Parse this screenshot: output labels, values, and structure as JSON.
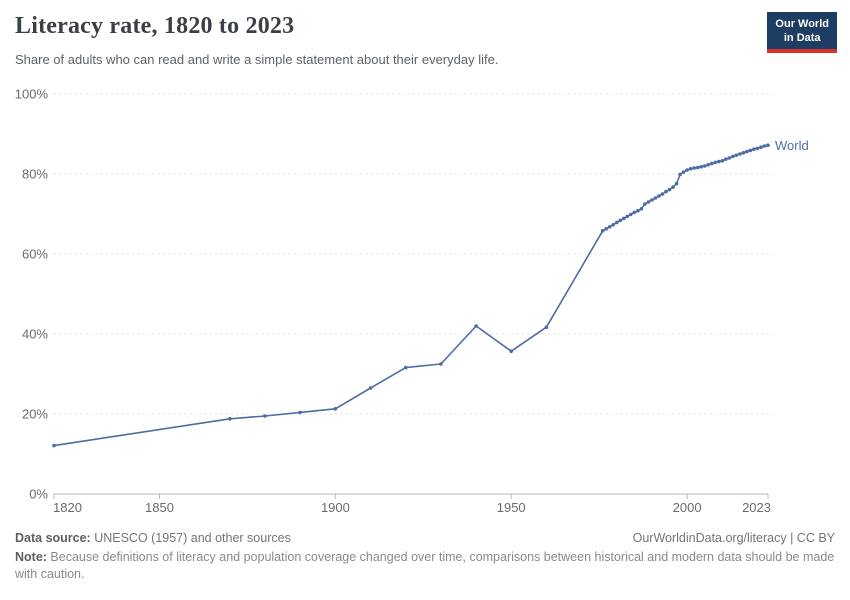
{
  "header": {
    "title": "Literacy rate, 1820 to 2023",
    "subtitle": "Share of adults who can read and write a simple statement about their everyday life.",
    "logo": {
      "line1": "Our World",
      "line2": "in Data",
      "bg": "#1d3d63",
      "accent": "#d8352e"
    }
  },
  "theme": {
    "line_color": "#4c6da4",
    "grid_color": "#dedede",
    "axis_color": "#b8b8b8",
    "tick_label_color": "#6b6b6b"
  },
  "chart_data": {
    "type": "line",
    "title": "Literacy rate, 1820 to 2023",
    "xlabel": "",
    "ylabel": "",
    "xlim": [
      1820,
      2023
    ],
    "ylim": [
      0,
      100
    ],
    "grid": "horizontal-dashed",
    "series_label_position": "end-of-line",
    "x_ticks": [
      1820,
      1850,
      1900,
      1950,
      2000,
      2023
    ],
    "y_ticks": [
      {
        "value": 0,
        "label": "0%"
      },
      {
        "value": 20,
        "label": "20%"
      },
      {
        "value": 40,
        "label": "40%"
      },
      {
        "value": 60,
        "label": "60%"
      },
      {
        "value": 80,
        "label": "80%"
      },
      {
        "value": 100,
        "label": "100%"
      }
    ],
    "series": [
      {
        "name": "World",
        "color": "#4c6da4",
        "points": [
          [
            1820,
            12.1
          ],
          [
            1870,
            18.8
          ],
          [
            1880,
            19.5
          ],
          [
            1890,
            20.4
          ],
          [
            1900,
            21.3
          ],
          [
            1910,
            26.5
          ],
          [
            1920,
            31.6
          ],
          [
            1930,
            32.5
          ],
          [
            1940,
            42.0
          ],
          [
            1950,
            35.7
          ],
          [
            1960,
            41.7
          ],
          [
            1976,
            65.8
          ],
          [
            1977,
            66.3
          ],
          [
            1978,
            66.8
          ],
          [
            1979,
            67.3
          ],
          [
            1980,
            67.9
          ],
          [
            1981,
            68.4
          ],
          [
            1982,
            68.9
          ],
          [
            1983,
            69.4
          ],
          [
            1984,
            69.9
          ],
          [
            1985,
            70.4
          ],
          [
            1986,
            70.8
          ],
          [
            1987,
            71.3
          ],
          [
            1988,
            72.5
          ],
          [
            1989,
            73.0
          ],
          [
            1990,
            73.5
          ],
          [
            1991,
            74.0
          ],
          [
            1992,
            74.5
          ],
          [
            1993,
            75.0
          ],
          [
            1994,
            75.6
          ],
          [
            1995,
            76.1
          ],
          [
            1996,
            76.7
          ],
          [
            1997,
            77.6
          ],
          [
            1998,
            79.9
          ],
          [
            1999,
            80.5
          ],
          [
            2000,
            81.0
          ],
          [
            2001,
            81.3
          ],
          [
            2002,
            81.5
          ],
          [
            2003,
            81.6
          ],
          [
            2004,
            81.8
          ],
          [
            2005,
            82.0
          ],
          [
            2006,
            82.3
          ],
          [
            2007,
            82.6
          ],
          [
            2008,
            82.9
          ],
          [
            2009,
            83.1
          ],
          [
            2010,
            83.3
          ],
          [
            2011,
            83.7
          ],
          [
            2012,
            84.0
          ],
          [
            2013,
            84.4
          ],
          [
            2014,
            84.7
          ],
          [
            2015,
            85.0
          ],
          [
            2016,
            85.3
          ],
          [
            2017,
            85.6
          ],
          [
            2018,
            85.9
          ],
          [
            2019,
            86.2
          ],
          [
            2020,
            86.4
          ],
          [
            2021,
            86.7
          ],
          [
            2022,
            87.0
          ],
          [
            2023,
            87.2
          ]
        ]
      }
    ]
  },
  "footer": {
    "datasource_label": "Data source:",
    "datasource_value": " UNESCO (1957) and other sources",
    "attribution": "OurWorldinData.org/literacy | CC BY",
    "note_label": "Note:",
    "note_value": " Because definitions of literacy and population coverage changed over time, comparisons between historical and modern data should be made with caution."
  }
}
